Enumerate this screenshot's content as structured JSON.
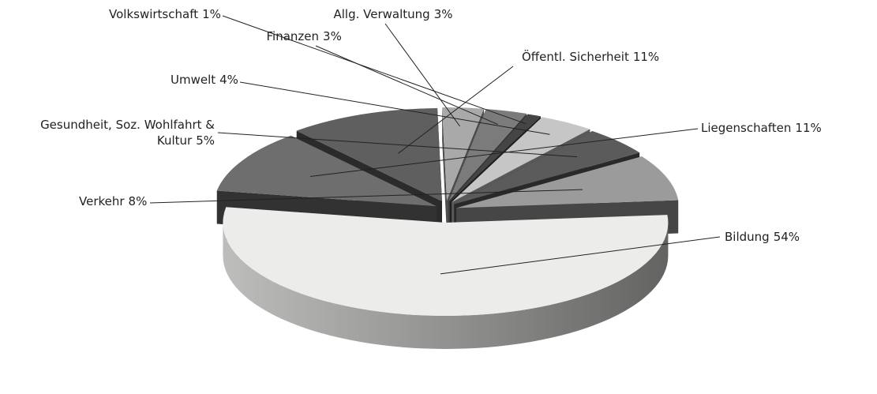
{
  "chart_data": {
    "type": "pie3d",
    "categories": [
      "Bildung",
      "Liegenschaften",
      "Öffentl. Sicherheit",
      "Allg. Verwaltung",
      "Finanzen",
      "Volkswirtschaft",
      "Umwelt",
      "Gesundheit, Soz. Wohlfahrt & Kultur",
      "Verkehr"
    ],
    "values": [
      54,
      11,
      11,
      3,
      3,
      1,
      4,
      5,
      8
    ],
    "value_labels": [
      "54%",
      "11%",
      "11%",
      "3%",
      "3%",
      "1%",
      "4%",
      "5%",
      "8%"
    ],
    "colors": [
      "#ececea",
      "#6e6e6e",
      "#5f5f5f",
      "#a9a9a9",
      "#7b7b7b",
      "#454545",
      "#c6c6c6",
      "#5b5b5b",
      "#9b9b9b"
    ]
  }
}
